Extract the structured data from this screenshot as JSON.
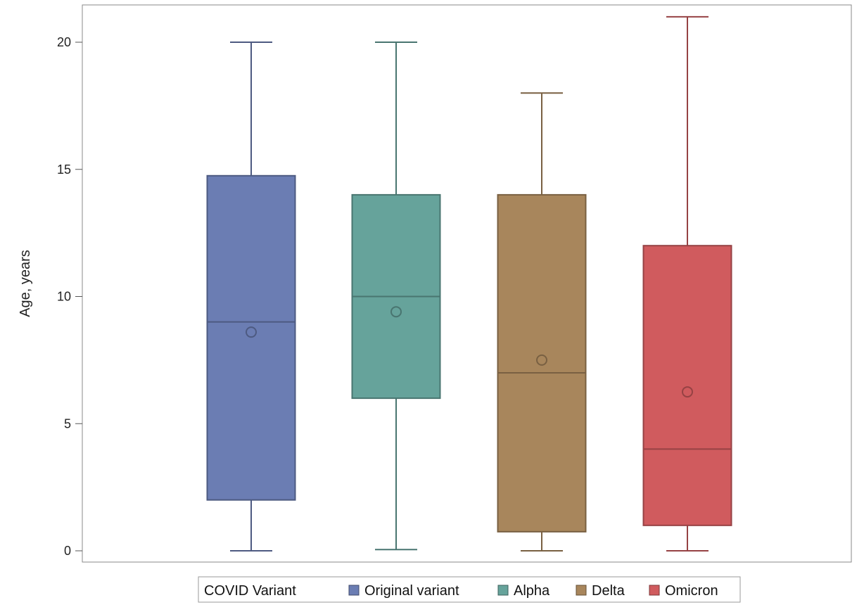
{
  "chart_data": {
    "type": "box",
    "title": "",
    "xlabel": "",
    "ylabel": "Age, years",
    "ylim": [
      0,
      21.5
    ],
    "yticks": [
      0,
      5,
      10,
      15,
      20
    ],
    "grid": false,
    "legend": {
      "title": "COVID Variant",
      "position": "bottom-center"
    },
    "series": [
      {
        "name": "Original variant",
        "color": "#6B7DB3",
        "min": 0,
        "q1": 2,
        "median": 9,
        "q3": 14.75,
        "max": 20,
        "mean": 8.6
      },
      {
        "name": "Alpha",
        "color": "#66A39B",
        "min": 0.05,
        "q1": 6,
        "median": 10,
        "q3": 14,
        "max": 20,
        "mean": 9.4
      },
      {
        "name": "Delta",
        "color": "#A8865C",
        "min": 0,
        "q1": 0.75,
        "median": 7,
        "q3": 14,
        "max": 18,
        "mean": 7.5
      },
      {
        "name": "Omicron",
        "color": "#D05B5E",
        "min": 0,
        "q1": 1,
        "median": 4,
        "q3": 12,
        "max": 21,
        "mean": 6.25
      }
    ]
  }
}
